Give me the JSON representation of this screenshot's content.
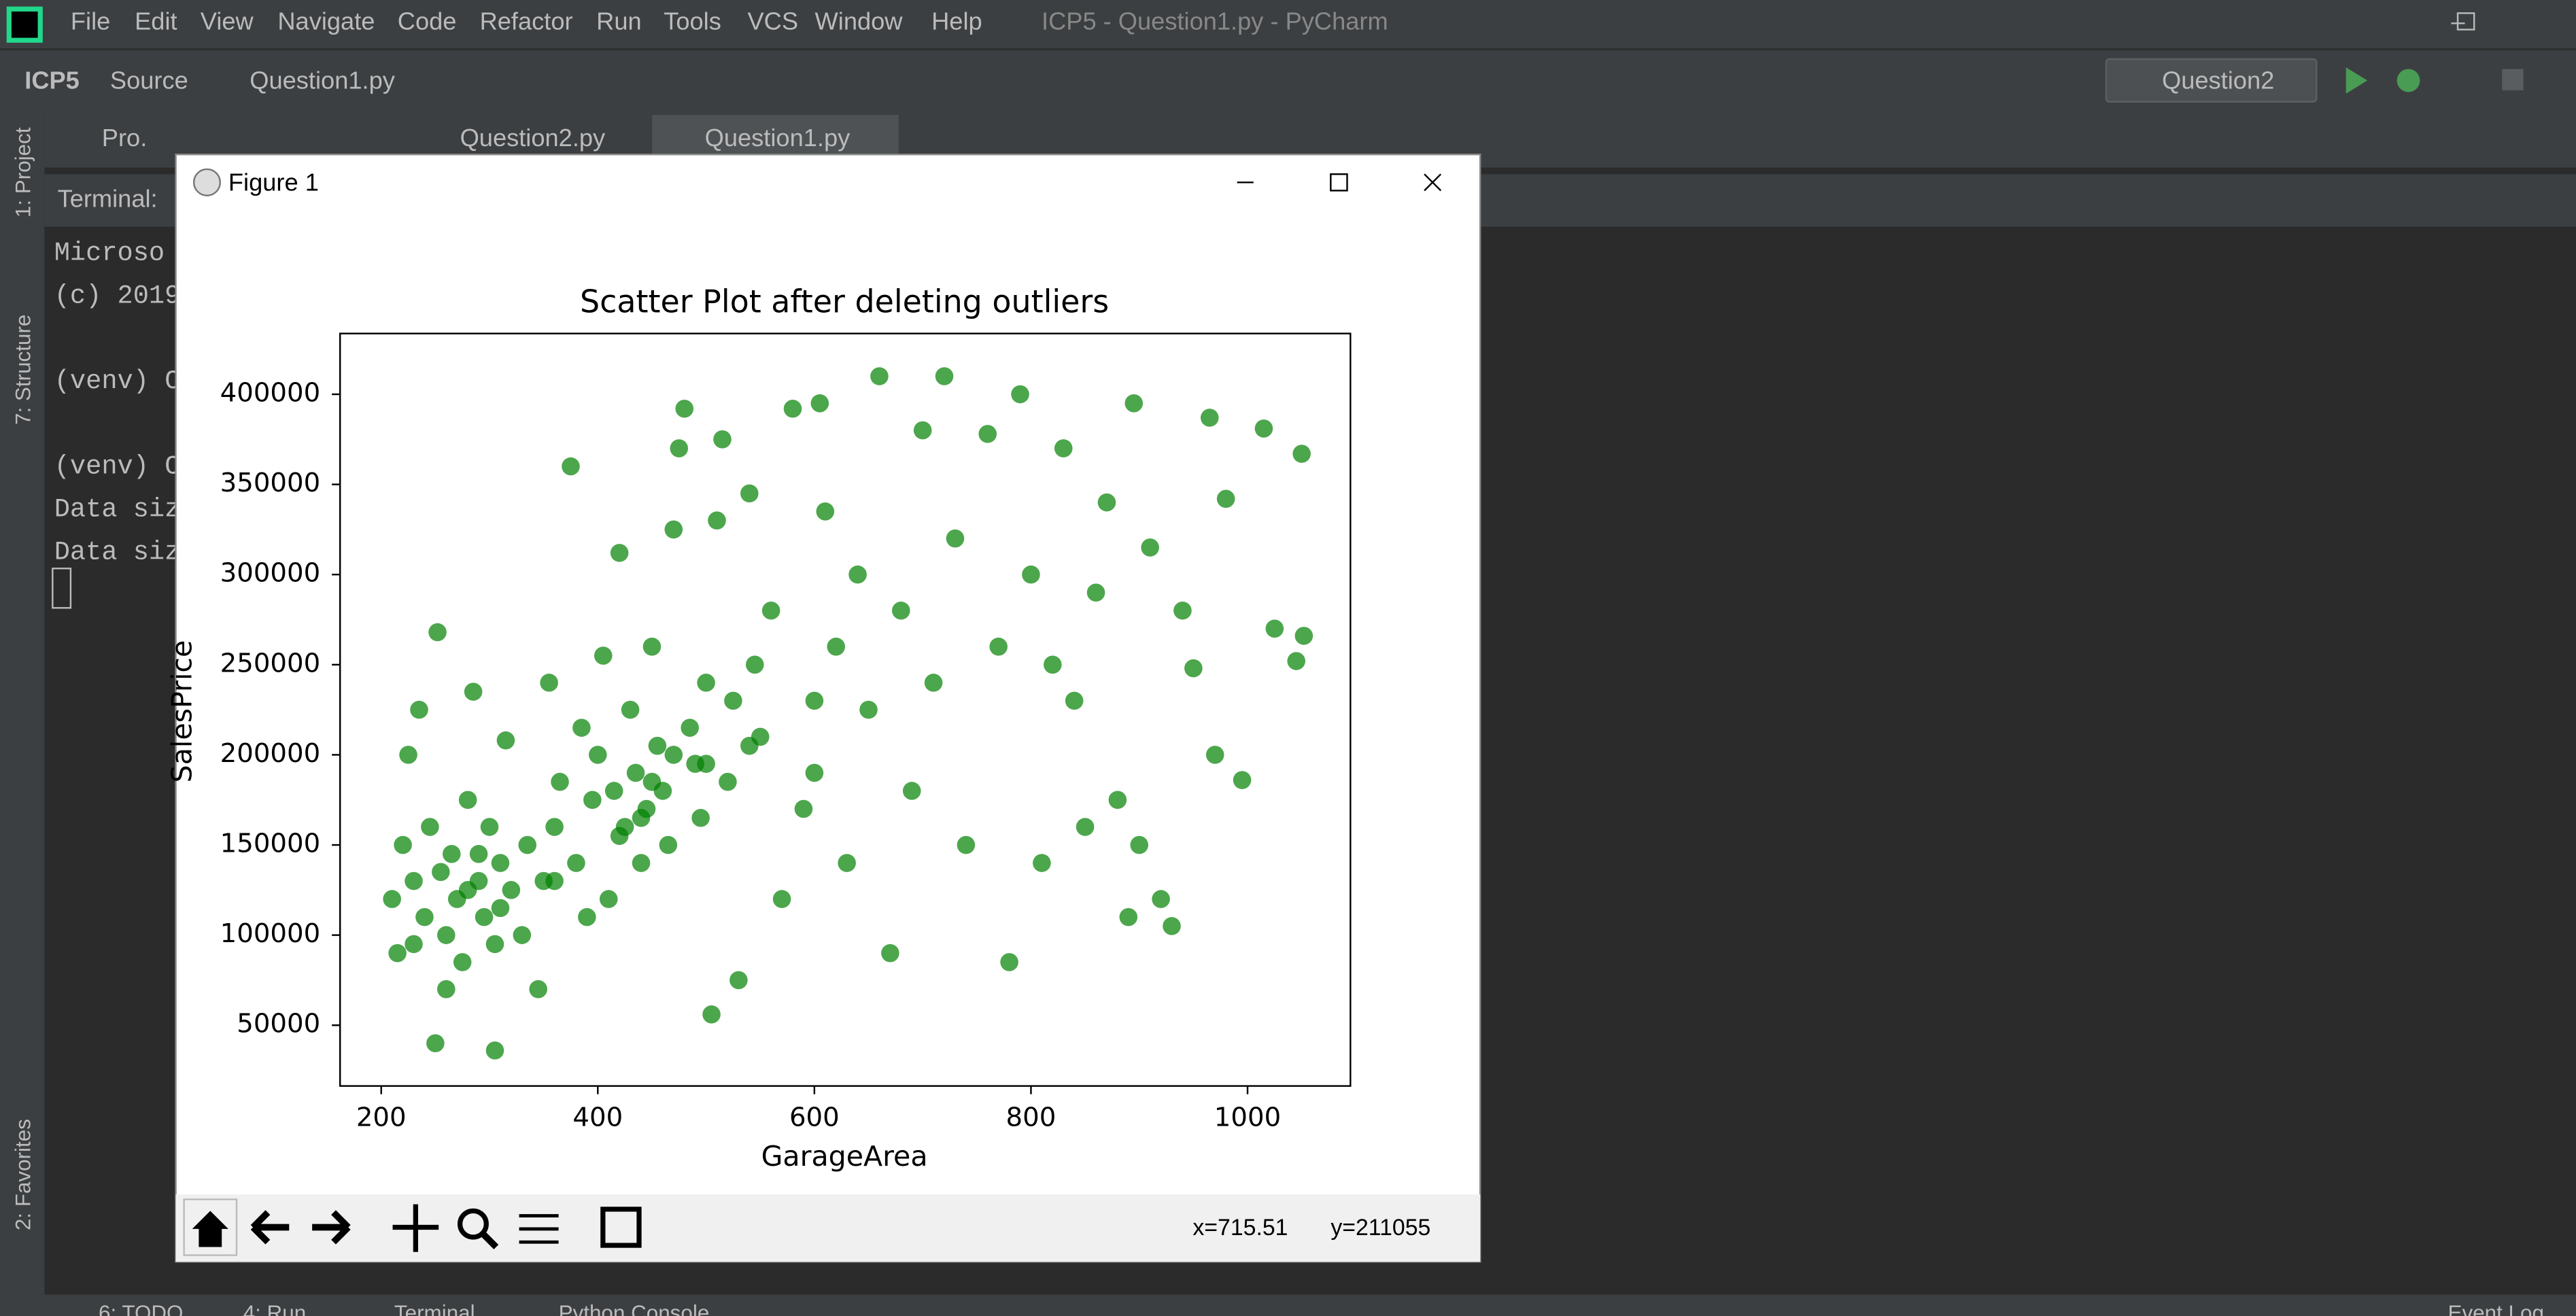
{
  "window_title": "ICP5 - Question1.py - PyCharm",
  "menu": [
    "File",
    "Edit",
    "View",
    "Navigate",
    "Code",
    "Refactor",
    "Run",
    "Tools",
    "VCS",
    "Window",
    "Help"
  ],
  "breadcrumb": [
    "ICP5",
    "Source",
    "Question1.py"
  ],
  "run_config": "Question2",
  "project_tab": "Pro.",
  "editor_tabs": [
    "Question2.py",
    "Question1.py"
  ],
  "terminal_label": "Terminal:",
  "terminal_lines": [
    "Microso",
    "(c) 2019",
    "(venv) C",
    "(venv) C",
    "Data siz",
    "Data siz"
  ],
  "side_tabs": [
    "1: Project",
    "7: Structure",
    "2: Favorites"
  ],
  "bottom_tabs": [
    "6: TODO",
    "4: Run",
    "Terminal",
    "Python Console",
    "Event Log"
  ],
  "figure": {
    "title": "Figure 1",
    "status_x": "x=715.51",
    "status_y": "y=211055"
  },
  "chart_data": {
    "type": "scatter",
    "title": "Scatter Plot after deleting outliers",
    "x_label": "GarageArea",
    "y_label": "SalesPrice",
    "color": "#008000",
    "xlim": [
      162,
      1095
    ],
    "ylim": [
      16300,
      433700
    ],
    "xticks": [
      200,
      400,
      600,
      800,
      1000
    ],
    "yticks": [
      50000,
      100000,
      150000,
      200000,
      250000,
      300000,
      350000,
      400000
    ],
    "x": [
      210,
      215,
      220,
      225,
      230,
      235,
      240,
      245,
      250,
      252,
      255,
      260,
      265,
      270,
      275,
      280,
      285,
      290,
      295,
      300,
      305,
      305,
      310,
      315,
      320,
      330,
      335,
      345,
      350,
      355,
      360,
      365,
      375,
      380,
      385,
      390,
      395,
      400,
      405,
      410,
      415,
      420,
      425,
      430,
      435,
      440,
      445,
      450,
      455,
      460,
      465,
      470,
      475,
      480,
      485,
      490,
      495,
      500,
      505,
      510,
      515,
      520,
      525,
      530,
      540,
      545,
      550,
      560,
      570,
      580,
      590,
      600,
      605,
      610,
      620,
      630,
      640,
      650,
      660,
      670,
      680,
      690,
      700,
      710,
      720,
      730,
      740,
      760,
      770,
      780,
      790,
      800,
      810,
      820,
      830,
      840,
      850,
      860,
      870,
      880,
      890,
      895,
      900,
      910,
      920,
      930,
      940,
      950,
      965,
      970,
      980,
      995,
      1015,
      1025,
      1045,
      1050,
      1052,
      230,
      260,
      290,
      420,
      450,
      470,
      440,
      500,
      540,
      310,
      280,
      360,
      600
    ],
    "values": [
      120000,
      90000,
      150000,
      200000,
      130000,
      225000,
      110000,
      160000,
      40000,
      268000,
      135000,
      100000,
      145000,
      120000,
      85000,
      175000,
      235000,
      130000,
      110000,
      160000,
      36000,
      95000,
      140000,
      208000,
      125000,
      100000,
      150000,
      70000,
      130000,
      240000,
      160000,
      185000,
      360000,
      140000,
      215000,
      110000,
      175000,
      200000,
      255000,
      120000,
      180000,
      312000,
      160000,
      225000,
      190000,
      140000,
      170000,
      260000,
      205000,
      180000,
      150000,
      325000,
      370000,
      392000,
      215000,
      195000,
      165000,
      240000,
      56000,
      330000,
      375000,
      185000,
      230000,
      75000,
      345000,
      250000,
      210000,
      280000,
      120000,
      392000,
      170000,
      230000,
      395000,
      335000,
      260000,
      140000,
      300000,
      225000,
      410000,
      90000,
      280000,
      180000,
      380000,
      240000,
      410000,
      320000,
      150000,
      378000,
      260000,
      85000,
      400000,
      300000,
      140000,
      250000,
      370000,
      230000,
      160000,
      290000,
      340000,
      175000,
      110000,
      395000,
      150000,
      315000,
      120000,
      105000,
      280000,
      248000,
      387000,
      200000,
      342000,
      186000,
      381000,
      270000,
      252000,
      367000,
      266000,
      95000,
      70000,
      145000,
      155000,
      185000,
      200000,
      165000,
      195000,
      205000,
      115000,
      125000,
      130000,
      190000
    ]
  }
}
